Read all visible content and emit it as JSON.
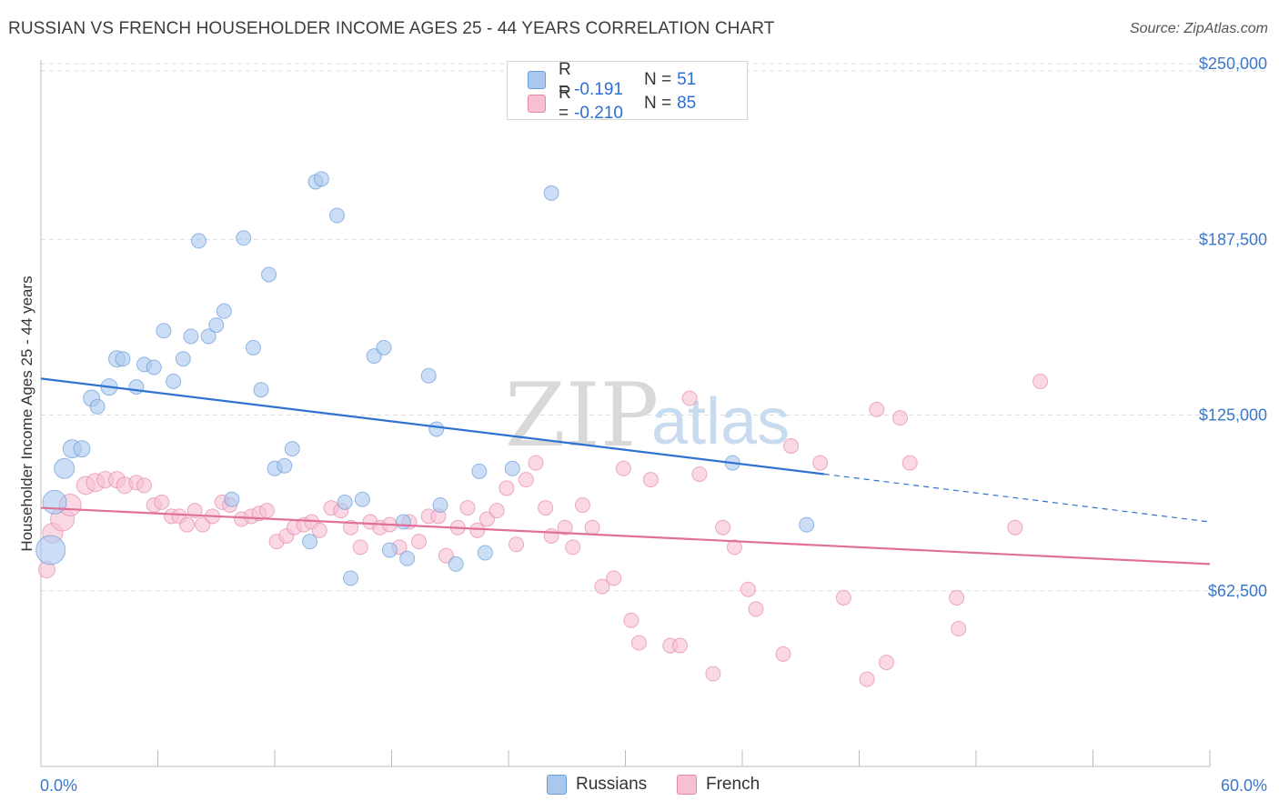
{
  "title": "RUSSIAN VS FRENCH HOUSEHOLDER INCOME AGES 25 - 44 YEARS CORRELATION CHART",
  "source": "Source: ZipAtlas.com",
  "watermark": {
    "zip": "ZIP",
    "atlas": "atlas"
  },
  "legend_top": {
    "rows": [
      {
        "r_label": "R =",
        "r_value": "-0.191",
        "n_label": "N =",
        "n_value": "51",
        "color": "#aac8ee",
        "border": "#6b9ddb"
      },
      {
        "r_label": "R =",
        "r_value": "-0.210",
        "n_label": "N =",
        "n_value": "85",
        "color": "#f7bfd3",
        "border": "#e58aab"
      }
    ]
  },
  "legend_bottom": {
    "russians": "Russians",
    "french": "French"
  },
  "chart_data": {
    "type": "scatter",
    "title": "RUSSIAN VS FRENCH HOUSEHOLDER INCOME AGES 25 - 44 YEARS CORRELATION CHART",
    "xlabel": "",
    "ylabel": "Householder Income Ages 25 - 44 years",
    "xlim": [
      0,
      60
    ],
    "ylim": [
      0,
      262000
    ],
    "x_tick_labels": [
      "0.0%",
      "60.0%"
    ],
    "y_ticks": [
      62500,
      125000,
      187500,
      250000
    ],
    "y_tick_labels": [
      "$62,500",
      "$125,000",
      "$187,500",
      "$250,000"
    ],
    "grid": true,
    "legend_position": "top-center",
    "colors": {
      "russians": "#6b9ddb",
      "russians_fill": "#aac8ee",
      "french": "#e58aab",
      "french_fill": "#f7bfd3",
      "russians_line": "#2f72d1",
      "french_line": "#e0709a"
    },
    "series": [
      {
        "name": "Russians",
        "r": -0.191,
        "n": 51,
        "trend": {
          "x0": 0,
          "y0": 138000,
          "x1": 40.2,
          "y1": 104000,
          "dash_to_x": 60,
          "dash_to_y": 87000
        },
        "points": [
          [
            0.5,
            77000,
            16
          ],
          [
            0.7,
            94000,
            13
          ],
          [
            1.2,
            106000,
            11
          ],
          [
            1.6,
            113000,
            10
          ],
          [
            2.1,
            113000,
            9
          ],
          [
            2.6,
            131000,
            9
          ],
          [
            2.9,
            128000,
            8
          ],
          [
            3.5,
            135000,
            9
          ],
          [
            3.9,
            145000,
            9
          ],
          [
            4.2,
            145000,
            8
          ],
          [
            4.9,
            135000,
            8
          ],
          [
            5.3,
            143000,
            8
          ],
          [
            5.8,
            142000,
            8
          ],
          [
            6.3,
            155000,
            8
          ],
          [
            6.8,
            137000,
            8
          ],
          [
            7.3,
            145000,
            8
          ],
          [
            7.7,
            153000,
            8
          ],
          [
            8.1,
            187000,
            8
          ],
          [
            8.6,
            153000,
            8
          ],
          [
            9.0,
            157000,
            8
          ],
          [
            9.4,
            162000,
            8
          ],
          [
            9.8,
            95000,
            8
          ],
          [
            10.4,
            188000,
            8
          ],
          [
            10.9,
            149000,
            8
          ],
          [
            11.3,
            134000,
            8
          ],
          [
            11.7,
            175000,
            8
          ],
          [
            12.0,
            106000,
            8
          ],
          [
            12.5,
            107000,
            8
          ],
          [
            12.9,
            113000,
            8
          ],
          [
            13.8,
            80000,
            8
          ],
          [
            14.1,
            208000,
            8
          ],
          [
            14.4,
            209000,
            8
          ],
          [
            15.2,
            196000,
            8
          ],
          [
            15.6,
            94000,
            8
          ],
          [
            15.9,
            67000,
            8
          ],
          [
            16.5,
            95000,
            8
          ],
          [
            17.1,
            146000,
            8
          ],
          [
            17.6,
            149000,
            8
          ],
          [
            17.9,
            77000,
            8
          ],
          [
            18.6,
            87000,
            8
          ],
          [
            18.8,
            74000,
            8
          ],
          [
            19.9,
            139000,
            8
          ],
          [
            20.3,
            120000,
            8
          ],
          [
            20.5,
            93000,
            8
          ],
          [
            21.3,
            72000,
            8
          ],
          [
            22.5,
            105000,
            8
          ],
          [
            22.8,
            76000,
            8
          ],
          [
            24.2,
            106000,
            8
          ],
          [
            26.2,
            204000,
            8
          ],
          [
            35.5,
            108000,
            8
          ],
          [
            39.3,
            86000,
            8
          ]
        ]
      },
      {
        "name": "French",
        "r": -0.21,
        "n": 85,
        "trend": {
          "x0": 0,
          "y0": 92000,
          "x1": 60,
          "y1": 72000
        },
        "points": [
          [
            0.3,
            70000,
            9
          ],
          [
            0.6,
            83000,
            11
          ],
          [
            1.1,
            88000,
            13
          ],
          [
            1.5,
            93000,
            12
          ],
          [
            2.3,
            100000,
            10
          ],
          [
            2.8,
            101000,
            10
          ],
          [
            3.3,
            102000,
            9
          ],
          [
            3.9,
            102000,
            9
          ],
          [
            4.3,
            100000,
            9
          ],
          [
            4.9,
            101000,
            8
          ],
          [
            5.3,
            100000,
            8
          ],
          [
            5.8,
            93000,
            8
          ],
          [
            6.2,
            94000,
            8
          ],
          [
            6.7,
            89000,
            8
          ],
          [
            7.1,
            89000,
            8
          ],
          [
            7.5,
            86000,
            8
          ],
          [
            7.9,
            91000,
            8
          ],
          [
            8.3,
            86000,
            8
          ],
          [
            8.8,
            89000,
            8
          ],
          [
            9.3,
            94000,
            8
          ],
          [
            9.7,
            93000,
            8
          ],
          [
            10.3,
            88000,
            8
          ],
          [
            10.8,
            89000,
            8
          ],
          [
            11.2,
            90000,
            8
          ],
          [
            11.6,
            91000,
            8
          ],
          [
            12.1,
            80000,
            8
          ],
          [
            12.6,
            82000,
            8
          ],
          [
            13.0,
            85000,
            8
          ],
          [
            13.5,
            86000,
            8
          ],
          [
            13.9,
            87000,
            8
          ],
          [
            14.3,
            84000,
            8
          ],
          [
            14.9,
            92000,
            8
          ],
          [
            15.4,
            91000,
            8
          ],
          [
            15.9,
            85000,
            8
          ],
          [
            16.4,
            78000,
            8
          ],
          [
            16.9,
            87000,
            8
          ],
          [
            17.4,
            85000,
            8
          ],
          [
            17.9,
            86000,
            8
          ],
          [
            18.4,
            78000,
            8
          ],
          [
            18.9,
            87000,
            8
          ],
          [
            19.4,
            80000,
            8
          ],
          [
            19.9,
            89000,
            8
          ],
          [
            20.4,
            89000,
            8
          ],
          [
            20.8,
            75000,
            8
          ],
          [
            21.4,
            85000,
            8
          ],
          [
            21.9,
            92000,
            8
          ],
          [
            22.4,
            84000,
            8
          ],
          [
            22.9,
            88000,
            8
          ],
          [
            23.4,
            91000,
            8
          ],
          [
            23.9,
            99000,
            8
          ],
          [
            24.4,
            79000,
            8
          ],
          [
            24.9,
            102000,
            8
          ],
          [
            25.4,
            108000,
            8
          ],
          [
            25.9,
            92000,
            8
          ],
          [
            26.2,
            82000,
            8
          ],
          [
            26.9,
            85000,
            8
          ],
          [
            27.3,
            78000,
            8
          ],
          [
            27.8,
            93000,
            8
          ],
          [
            28.3,
            85000,
            8
          ],
          [
            28.8,
            64000,
            8
          ],
          [
            29.4,
            67000,
            8
          ],
          [
            29.9,
            106000,
            8
          ],
          [
            30.3,
            52000,
            8
          ],
          [
            30.7,
            44000,
            8
          ],
          [
            31.3,
            102000,
            8
          ],
          [
            32.3,
            43000,
            8
          ],
          [
            32.8,
            43000,
            8
          ],
          [
            33.3,
            131000,
            8
          ],
          [
            33.8,
            104000,
            8
          ],
          [
            34.5,
            33000,
            8
          ],
          [
            35.0,
            85000,
            8
          ],
          [
            35.6,
            78000,
            8
          ],
          [
            36.3,
            63000,
            8
          ],
          [
            36.7,
            56000,
            8
          ],
          [
            38.1,
            40000,
            8
          ],
          [
            38.5,
            114000,
            8
          ],
          [
            40.0,
            108000,
            8
          ],
          [
            41.2,
            60000,
            8
          ],
          [
            42.4,
            31000,
            8
          ],
          [
            42.9,
            127000,
            8
          ],
          [
            43.4,
            37000,
            8
          ],
          [
            44.1,
            124000,
            8
          ],
          [
            44.6,
            108000,
            8
          ],
          [
            47.0,
            60000,
            8
          ],
          [
            47.1,
            49000,
            8
          ],
          [
            50.0,
            85000,
            8
          ],
          [
            51.3,
            137000,
            8
          ]
        ]
      }
    ]
  }
}
